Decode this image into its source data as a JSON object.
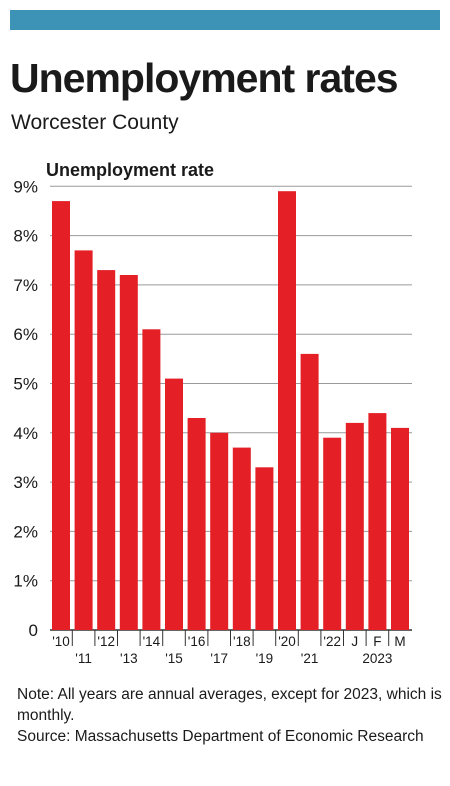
{
  "header": {
    "title": "Unemployment rates",
    "subtitle": "Worcester County"
  },
  "colors": {
    "accent_bar": "#3c93b5",
    "bars": "#e41f26",
    "gridlines": "#9a9a9a"
  },
  "chart_data": {
    "type": "bar",
    "title": "Unemployment rates",
    "subtitle": "Worcester County",
    "ylabel": "Unemployment rate",
    "xlabel": "",
    "ylim": [
      0,
      9
    ],
    "yticks": [
      "0",
      "1%",
      "2%",
      "3%",
      "4%",
      "5%",
      "6%",
      "7%",
      "8%",
      "9%"
    ],
    "grid": true,
    "categories": [
      "'10",
      "'11",
      "'12",
      "'13",
      "'14",
      "'15",
      "'16",
      "'17",
      "'18",
      "'19",
      "'20",
      "'21",
      "'22",
      "J",
      "F",
      "M"
    ],
    "values": [
      8.7,
      7.7,
      7.3,
      7.2,
      6.1,
      5.1,
      4.3,
      4.0,
      3.7,
      3.3,
      8.9,
      5.6,
      3.9,
      4.2,
      4.4,
      4.1
    ],
    "group_label": "2023",
    "units": "%"
  },
  "notes": {
    "note": "Note: All years are annual averages, except for 2023, which is monthly.",
    "source": "Source: Massachusetts Department of Economic Research"
  }
}
